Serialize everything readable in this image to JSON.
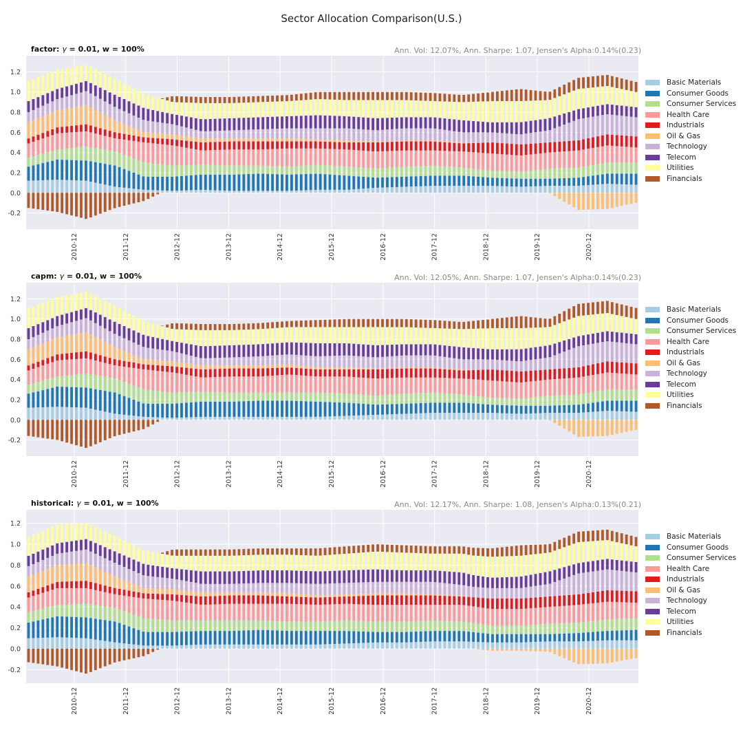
{
  "figure": {
    "title": "Sector Allocation Comparison(U.S.)"
  },
  "chart_data": [
    {
      "type": "bar",
      "stacked": true,
      "title_prefix": "factor:",
      "title_gamma_symbol": "γ",
      "title_rest": " = 0.01, w = 100%",
      "stats": "Ann. Vol: 12.07%, Ann. Sharpe: 1.07, Jensen's Alpha:0.14%(0.23)",
      "ylim": [
        -0.36,
        1.36
      ],
      "yticks": [
        -0.2,
        0.0,
        0.2,
        0.4,
        0.6,
        0.8,
        1.0,
        1.2
      ],
      "ytick_labels": [
        "-0.2",
        "0.0",
        "0.2",
        "0.4",
        "0.6",
        "0.8",
        "1.0",
        "1.2"
      ],
      "xtick_labels": [
        "2010-12",
        "2011-12",
        "2012-12",
        "2013-12",
        "2014-12",
        "2015-12",
        "2016-12",
        "2017-12",
        "2018-12",
        "2019-12",
        "2020-12"
      ],
      "grid": true,
      "legend_placement": "center-right outside",
      "x": [
        "2010-12",
        "2011-06",
        "2011-12",
        "2012-06",
        "2012-12",
        "2013-06",
        "2013-12",
        "2014-06",
        "2014-12",
        "2015-06",
        "2015-12",
        "2016-06",
        "2016-12",
        "2017-06",
        "2017-12",
        "2018-06",
        "2018-12",
        "2019-06",
        "2019-12",
        "2020-06",
        "2020-12",
        "2021-06"
      ],
      "series": [
        {
          "name": "Basic Materials",
          "values": [
            0.12,
            0.13,
            0.12,
            0.06,
            0.03,
            0.02,
            0.03,
            0.02,
            0.02,
            0.02,
            0.03,
            0.03,
            0.05,
            0.06,
            0.07,
            0.07,
            0.07,
            0.06,
            0.07,
            0.07,
            0.09,
            0.08
          ]
        },
        {
          "name": "Consumer Goods",
          "values": [
            0.14,
            0.2,
            0.2,
            0.21,
            0.13,
            0.14,
            0.15,
            0.16,
            0.17,
            0.16,
            0.16,
            0.14,
            0.1,
            0.1,
            0.1,
            0.1,
            0.08,
            0.08,
            0.07,
            0.08,
            0.1,
            0.11
          ]
        },
        {
          "name": "Consumer Services",
          "values": [
            0.09,
            0.1,
            0.14,
            0.14,
            0.14,
            0.11,
            0.1,
            0.09,
            0.08,
            0.08,
            0.09,
            0.09,
            0.09,
            0.1,
            0.1,
            0.08,
            0.07,
            0.07,
            0.1,
            0.1,
            0.11,
            0.11
          ]
        },
        {
          "name": "Health Care",
          "values": [
            0.14,
            0.16,
            0.15,
            0.13,
            0.2,
            0.2,
            0.14,
            0.16,
            0.16,
            0.18,
            0.16,
            0.17,
            0.17,
            0.16,
            0.15,
            0.16,
            0.17,
            0.16,
            0.16,
            0.17,
            0.17,
            0.15
          ]
        },
        {
          "name": "Industrials",
          "values": [
            0.05,
            0.06,
            0.07,
            0.06,
            0.05,
            0.06,
            0.08,
            0.08,
            0.08,
            0.07,
            0.07,
            0.07,
            0.09,
            0.09,
            0.09,
            0.08,
            0.11,
            0.11,
            0.1,
            0.1,
            0.11,
            0.11
          ]
        },
        {
          "name": "Oil & Gas",
          "values": [
            0.16,
            0.17,
            0.19,
            0.12,
            0.05,
            0.05,
            0.04,
            0.03,
            0.03,
            0.03,
            0.02,
            0.02,
            0.01,
            0.01,
            0.01,
            0.01,
            0.0,
            0.0,
            0.0,
            -0.17,
            -0.16,
            -0.1
          ]
        },
        {
          "name": "Technology",
          "values": [
            0.1,
            0.11,
            0.14,
            0.13,
            0.12,
            0.1,
            0.07,
            0.08,
            0.09,
            0.1,
            0.11,
            0.12,
            0.11,
            0.12,
            0.12,
            0.1,
            0.1,
            0.1,
            0.12,
            0.21,
            0.2,
            0.19
          ]
        },
        {
          "name": "Telecom",
          "values": [
            0.11,
            0.1,
            0.1,
            0.12,
            0.12,
            0.1,
            0.12,
            0.12,
            0.12,
            0.12,
            0.13,
            0.12,
            0.12,
            0.11,
            0.11,
            0.12,
            0.1,
            0.12,
            0.12,
            0.1,
            0.1,
            0.1
          ]
        },
        {
          "name": "Utilities",
          "values": [
            0.2,
            0.19,
            0.16,
            0.16,
            0.14,
            0.12,
            0.16,
            0.15,
            0.15,
            0.15,
            0.16,
            0.16,
            0.18,
            0.17,
            0.16,
            0.18,
            0.21,
            0.21,
            0.18,
            0.2,
            0.18,
            0.15
          ]
        },
        {
          "name": "Financials",
          "values": [
            -0.15,
            -0.19,
            -0.26,
            -0.15,
            -0.08,
            0.06,
            0.06,
            0.06,
            0.06,
            0.06,
            0.07,
            0.08,
            0.08,
            0.08,
            0.08,
            0.07,
            0.09,
            0.12,
            0.08,
            0.11,
            0.11,
            0.1
          ]
        }
      ]
    },
    {
      "type": "bar",
      "stacked": true,
      "title_prefix": "capm:",
      "title_gamma_symbol": "γ",
      "title_rest": " = 0.01, w = 100%",
      "stats": "Ann. Vol: 12.05%, Ann. Sharpe: 1.07, Jensen's Alpha:0.14%(0.23)",
      "ylim": [
        -0.36,
        1.36
      ],
      "yticks": [
        -0.2,
        0.0,
        0.2,
        0.4,
        0.6,
        0.8,
        1.0,
        1.2
      ],
      "ytick_labels": [
        "-0.2",
        "0.0",
        "0.2",
        "0.4",
        "0.6",
        "0.8",
        "1.0",
        "1.2"
      ],
      "xtick_labels": [
        "2010-12",
        "2011-12",
        "2012-12",
        "2013-12",
        "2014-12",
        "2015-12",
        "2016-12",
        "2017-12",
        "2018-12",
        "2019-12",
        "2020-12"
      ],
      "grid": true,
      "legend_placement": "center-right outside",
      "x": [
        "2010-12",
        "2011-06",
        "2011-12",
        "2012-06",
        "2012-12",
        "2013-06",
        "2013-12",
        "2014-06",
        "2014-12",
        "2015-06",
        "2015-12",
        "2016-06",
        "2016-12",
        "2017-06",
        "2017-12",
        "2018-06",
        "2018-12",
        "2019-06",
        "2019-12",
        "2020-06",
        "2020-12",
        "2021-06"
      ],
      "series": [
        {
          "name": "Basic Materials",
          "values": [
            0.12,
            0.13,
            0.12,
            0.06,
            0.03,
            0.02,
            0.03,
            0.03,
            0.03,
            0.03,
            0.03,
            0.04,
            0.05,
            0.06,
            0.07,
            0.07,
            0.07,
            0.06,
            0.07,
            0.07,
            0.09,
            0.08
          ]
        },
        {
          "name": "Consumer Goods",
          "values": [
            0.14,
            0.2,
            0.2,
            0.21,
            0.13,
            0.14,
            0.15,
            0.15,
            0.16,
            0.16,
            0.15,
            0.13,
            0.1,
            0.1,
            0.1,
            0.1,
            0.08,
            0.08,
            0.07,
            0.08,
            0.1,
            0.11
          ]
        },
        {
          "name": "Consumer Services",
          "values": [
            0.09,
            0.1,
            0.14,
            0.14,
            0.14,
            0.11,
            0.1,
            0.09,
            0.08,
            0.08,
            0.09,
            0.09,
            0.09,
            0.1,
            0.1,
            0.08,
            0.07,
            0.07,
            0.1,
            0.1,
            0.11,
            0.11
          ]
        },
        {
          "name": "Health Care",
          "values": [
            0.14,
            0.16,
            0.15,
            0.13,
            0.2,
            0.2,
            0.14,
            0.16,
            0.16,
            0.18,
            0.16,
            0.17,
            0.17,
            0.16,
            0.15,
            0.16,
            0.17,
            0.16,
            0.16,
            0.17,
            0.17,
            0.15
          ]
        },
        {
          "name": "Industrials",
          "values": [
            0.05,
            0.06,
            0.07,
            0.06,
            0.05,
            0.06,
            0.08,
            0.08,
            0.08,
            0.07,
            0.07,
            0.07,
            0.09,
            0.09,
            0.09,
            0.08,
            0.11,
            0.11,
            0.1,
            0.1,
            0.11,
            0.11
          ]
        },
        {
          "name": "Oil & Gas",
          "values": [
            0.16,
            0.17,
            0.19,
            0.12,
            0.05,
            0.05,
            0.04,
            0.03,
            0.03,
            0.03,
            0.02,
            0.02,
            0.01,
            0.01,
            0.01,
            0.01,
            0.0,
            0.0,
            0.0,
            -0.17,
            -0.16,
            -0.1
          ]
        },
        {
          "name": "Technology",
          "values": [
            0.1,
            0.11,
            0.14,
            0.13,
            0.12,
            0.1,
            0.07,
            0.08,
            0.09,
            0.1,
            0.11,
            0.12,
            0.11,
            0.12,
            0.12,
            0.1,
            0.1,
            0.1,
            0.12,
            0.21,
            0.2,
            0.19
          ]
        },
        {
          "name": "Telecom",
          "values": [
            0.11,
            0.1,
            0.1,
            0.12,
            0.12,
            0.1,
            0.12,
            0.12,
            0.12,
            0.12,
            0.13,
            0.12,
            0.12,
            0.11,
            0.11,
            0.12,
            0.1,
            0.12,
            0.12,
            0.1,
            0.1,
            0.1
          ]
        },
        {
          "name": "Utilities",
          "values": [
            0.2,
            0.19,
            0.16,
            0.16,
            0.14,
            0.12,
            0.16,
            0.15,
            0.15,
            0.15,
            0.16,
            0.16,
            0.18,
            0.17,
            0.16,
            0.18,
            0.21,
            0.21,
            0.18,
            0.2,
            0.18,
            0.15
          ]
        },
        {
          "name": "Financials",
          "values": [
            -0.16,
            -0.2,
            -0.28,
            -0.16,
            -0.09,
            0.06,
            0.06,
            0.06,
            0.06,
            0.06,
            0.07,
            0.08,
            0.08,
            0.08,
            0.08,
            0.07,
            0.09,
            0.12,
            0.08,
            0.12,
            0.12,
            0.11
          ]
        }
      ]
    },
    {
      "type": "bar",
      "stacked": true,
      "title_prefix": "historical:",
      "title_gamma_symbol": "γ",
      "title_rest": " = 0.01, w = 100%",
      "stats": "Ann. Vol: 12.17%, Ann. Sharpe: 1.08, Jensen's Alpha:0.13%(0.21)",
      "ylim": [
        -0.33,
        1.33
      ],
      "yticks": [
        -0.2,
        0.0,
        0.2,
        0.4,
        0.6,
        0.8,
        1.0,
        1.2
      ],
      "ytick_labels": [
        "-0.2",
        "0.0",
        "0.2",
        "0.4",
        "0.6",
        "0.8",
        "1.0",
        "1.2"
      ],
      "xtick_labels": [
        "2010-12",
        "2011-12",
        "2012-12",
        "2013-12",
        "2014-12",
        "2015-12",
        "2016-12",
        "2017-12",
        "2018-12",
        "2019-12",
        "2020-12"
      ],
      "grid": true,
      "legend_placement": "center-right outside",
      "x": [
        "2010-12",
        "2011-06",
        "2011-12",
        "2012-06",
        "2012-12",
        "2013-06",
        "2013-12",
        "2014-06",
        "2014-12",
        "2015-06",
        "2015-12",
        "2016-06",
        "2016-12",
        "2017-06",
        "2017-12",
        "2018-06",
        "2018-12",
        "2019-06",
        "2019-12",
        "2020-06",
        "2020-12",
        "2021-06"
      ],
      "series": [
        {
          "name": "Basic Materials",
          "values": [
            0.1,
            0.11,
            0.1,
            0.06,
            0.03,
            0.03,
            0.04,
            0.04,
            0.04,
            0.04,
            0.04,
            0.05,
            0.06,
            0.06,
            0.07,
            0.07,
            0.06,
            0.06,
            0.07,
            0.07,
            0.08,
            0.08
          ]
        },
        {
          "name": "Consumer Goods",
          "values": [
            0.15,
            0.2,
            0.2,
            0.2,
            0.13,
            0.13,
            0.13,
            0.13,
            0.14,
            0.13,
            0.13,
            0.12,
            0.1,
            0.1,
            0.1,
            0.1,
            0.08,
            0.08,
            0.07,
            0.08,
            0.09,
            0.1
          ]
        },
        {
          "name": "Consumer Services",
          "values": [
            0.1,
            0.11,
            0.13,
            0.13,
            0.13,
            0.11,
            0.1,
            0.1,
            0.09,
            0.09,
            0.09,
            0.1,
            0.1,
            0.1,
            0.1,
            0.09,
            0.08,
            0.08,
            0.1,
            0.1,
            0.11,
            0.11
          ]
        },
        {
          "name": "Health Care",
          "values": [
            0.14,
            0.16,
            0.15,
            0.13,
            0.19,
            0.19,
            0.15,
            0.16,
            0.16,
            0.17,
            0.16,
            0.16,
            0.16,
            0.16,
            0.15,
            0.16,
            0.16,
            0.16,
            0.16,
            0.17,
            0.17,
            0.15
          ]
        },
        {
          "name": "Industrials",
          "values": [
            0.05,
            0.06,
            0.07,
            0.06,
            0.05,
            0.06,
            0.08,
            0.08,
            0.08,
            0.07,
            0.07,
            0.07,
            0.09,
            0.09,
            0.09,
            0.08,
            0.1,
            0.1,
            0.1,
            0.1,
            0.11,
            0.11
          ]
        },
        {
          "name": "Oil & Gas",
          "values": [
            0.15,
            0.16,
            0.17,
            0.11,
            0.05,
            0.05,
            0.04,
            0.03,
            0.03,
            0.03,
            0.02,
            0.02,
            0.02,
            0.02,
            0.01,
            0.01,
            -0.02,
            -0.02,
            -0.03,
            -0.15,
            -0.14,
            -0.09
          ]
        },
        {
          "name": "Technology",
          "values": [
            0.1,
            0.11,
            0.13,
            0.13,
            0.12,
            0.1,
            0.08,
            0.08,
            0.09,
            0.1,
            0.11,
            0.11,
            0.11,
            0.11,
            0.12,
            0.1,
            0.1,
            0.1,
            0.12,
            0.2,
            0.2,
            0.18
          ]
        },
        {
          "name": "Telecom",
          "values": [
            0.1,
            0.1,
            0.1,
            0.11,
            0.11,
            0.1,
            0.12,
            0.12,
            0.12,
            0.12,
            0.12,
            0.12,
            0.12,
            0.11,
            0.11,
            0.12,
            0.1,
            0.11,
            0.12,
            0.1,
            0.1,
            0.1
          ]
        },
        {
          "name": "Utilities",
          "values": [
            0.18,
            0.18,
            0.15,
            0.15,
            0.13,
            0.12,
            0.15,
            0.15,
            0.15,
            0.15,
            0.15,
            0.16,
            0.17,
            0.17,
            0.16,
            0.18,
            0.2,
            0.2,
            0.18,
            0.2,
            0.18,
            0.15
          ]
        },
        {
          "name": "Financials",
          "values": [
            -0.13,
            -0.17,
            -0.24,
            -0.13,
            -0.07,
            0.06,
            0.06,
            0.06,
            0.06,
            0.06,
            0.07,
            0.07,
            0.07,
            0.07,
            0.07,
            0.07,
            0.08,
            0.1,
            0.08,
            0.1,
            0.1,
            0.09
          ]
        }
      ]
    }
  ],
  "colors": {
    "Basic Materials": "#a6cee3",
    "Consumer Goods": "#1f78b4",
    "Consumer Services": "#b2df8a",
    "Health Care": "#fb9a99",
    "Industrials": "#e31a1c",
    "Oil & Gas": "#fdbf6f",
    "Technology": "#cab2d6",
    "Telecom": "#6a3d9a",
    "Utilities": "#ffff99",
    "Financials": "#b15928",
    "plot_background": "#eaeaf2",
    "grid": "#ffffff",
    "stats_text": "#888888"
  }
}
